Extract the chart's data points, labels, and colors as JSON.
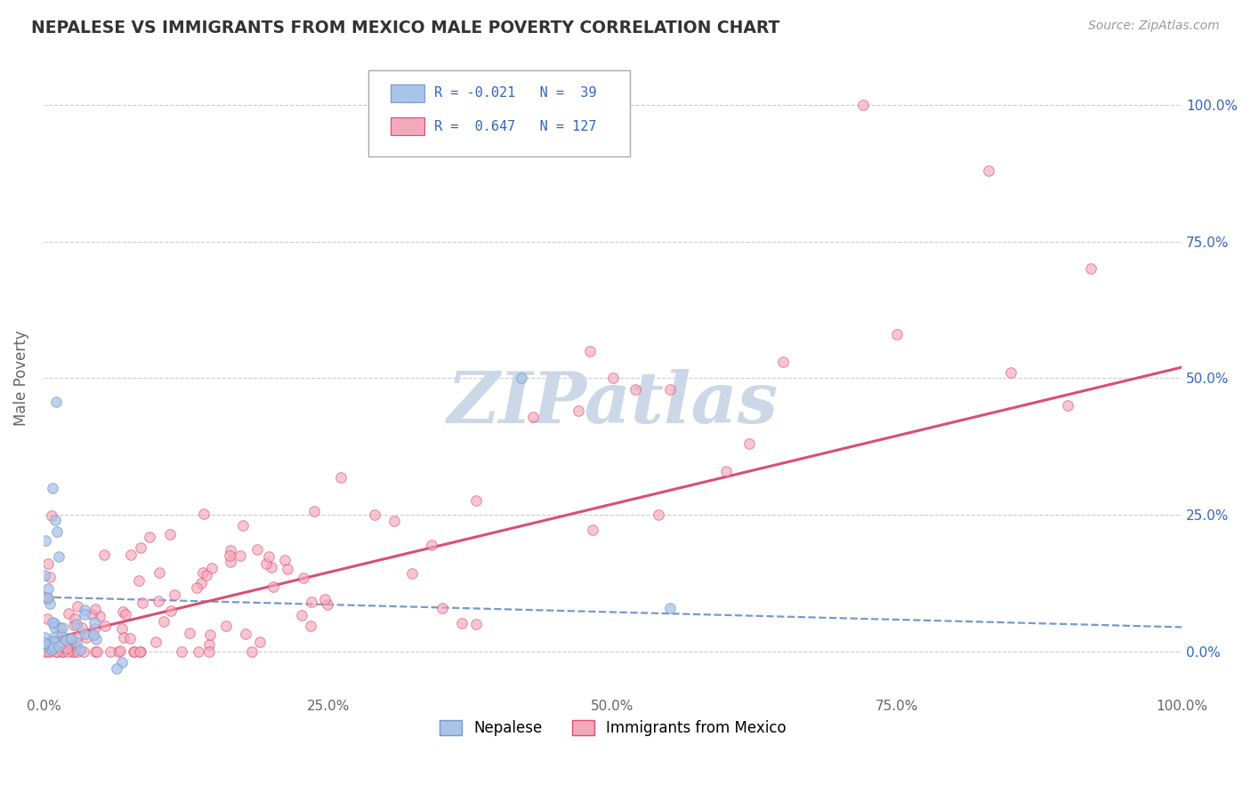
{
  "title": "NEPALESE VS IMMIGRANTS FROM MEXICO MALE POVERTY CORRELATION CHART",
  "source": "Source: ZipAtlas.com",
  "ylabel": "Male Poverty",
  "legend_label1": "Nepalese",
  "legend_label2": "Immigrants from Mexico",
  "R1": -0.021,
  "N1": 39,
  "R2": 0.647,
  "N2": 127,
  "color1": "#a8c4e8",
  "color2": "#f4a8bc",
  "line_color1": "#7799cc",
  "line_color2": "#d94f70",
  "bg_color": "#ffffff",
  "grid_color": "#cccccc",
  "title_color": "#333333",
  "source_color": "#999999",
  "legend_text_color": "#3366bb",
  "watermark_color": "#ccd8e8",
  "watermark_text": "ZIPatlas",
  "xlim": [
    0.0,
    1.0
  ],
  "ylim": [
    -0.08,
    1.08
  ],
  "yticks": [
    0.0,
    0.25,
    0.5,
    0.75,
    1.0
  ],
  "xticks": [
    0.0,
    0.25,
    0.5,
    0.75,
    1.0
  ],
  "blue_intercept": 0.1,
  "blue_slope": -0.055,
  "pink_intercept": 0.02,
  "pink_slope": 0.5
}
